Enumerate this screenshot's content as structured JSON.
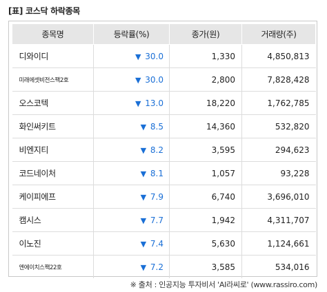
{
  "caption": "[표] 코스닥 하락종목",
  "table": {
    "headers": [
      "종목명",
      "등락률(%)",
      "종가(원)",
      "거래량(주)"
    ],
    "rows": [
      {
        "name": "디와이디",
        "small": false,
        "rate": "30.0",
        "close": "1,330",
        "volume": "4,850,813"
      },
      {
        "name": "미래에셋비전스팩2호",
        "small": true,
        "rate": "30.0",
        "close": "2,800",
        "volume": "7,828,428"
      },
      {
        "name": "오스코텍",
        "small": false,
        "rate": "13.0",
        "close": "18,220",
        "volume": "1,762,785"
      },
      {
        "name": "화인써키트",
        "small": false,
        "rate": "8.5",
        "close": "14,360",
        "volume": "532,820"
      },
      {
        "name": "비엔지티",
        "small": false,
        "rate": "8.2",
        "close": "3,595",
        "volume": "294,623"
      },
      {
        "name": "코드네이처",
        "small": false,
        "rate": "8.1",
        "close": "1,057",
        "volume": "93,228"
      },
      {
        "name": "케이피에프",
        "small": false,
        "rate": "7.9",
        "close": "6,740",
        "volume": "3,696,010"
      },
      {
        "name": "캠시스",
        "small": false,
        "rate": "7.7",
        "close": "1,942",
        "volume": "4,311,707"
      },
      {
        "name": "이노진",
        "small": false,
        "rate": "7.4",
        "close": "5,630",
        "volume": "1,124,661"
      },
      {
        "name": "엔에이치스팩22호",
        "small": true,
        "rate": "7.2",
        "close": "3,585",
        "volume": "534,016"
      }
    ],
    "down_arrow": "▼",
    "down_color": "#1a6fd6"
  },
  "source": "※ 출처 : 인공지능 투자비서 'AI라씨로' (www.rassiro.com)"
}
